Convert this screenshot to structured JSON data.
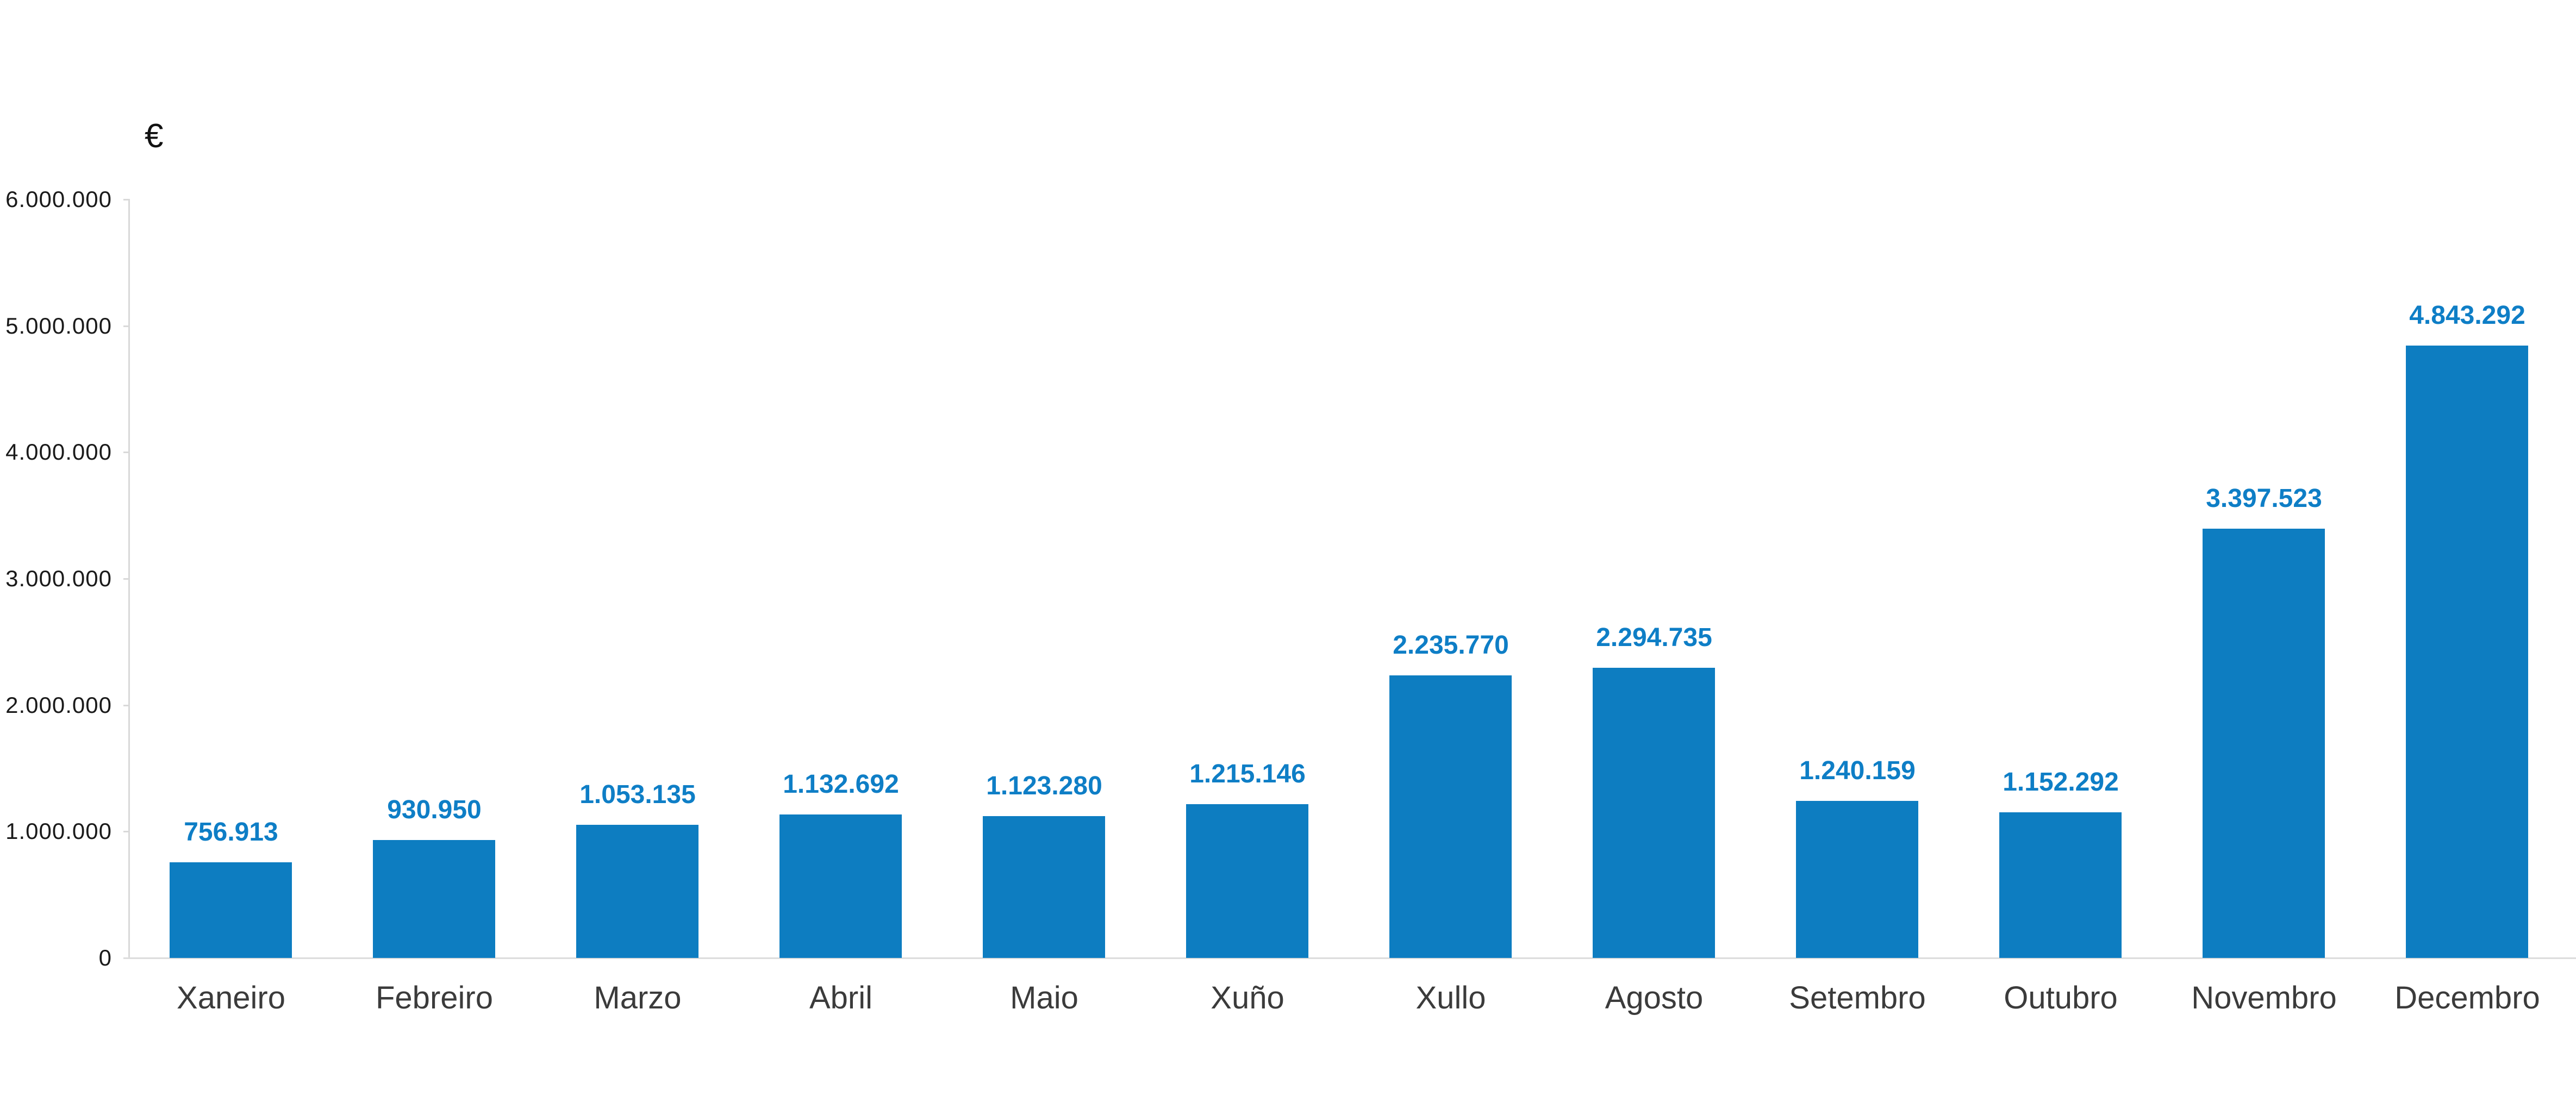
{
  "chart_data": {
    "type": "bar",
    "title": "",
    "unit_label": "€",
    "categories": [
      "Xaneiro",
      "Febreiro",
      "Marzo",
      "Abril",
      "Maio",
      "Xuño",
      "Xullo",
      "Agosto",
      "Setembro",
      "Outubro",
      "Novembro",
      "Decembro"
    ],
    "values": [
      756913,
      930950,
      1053135,
      1132692,
      1123280,
      1215146,
      2235770,
      2294735,
      1240159,
      1152292,
      3397523,
      4843292
    ],
    "value_labels": [
      "756.913",
      "930.950",
      "1.053.135",
      "1.132.692",
      "1.123.280",
      "1.215.146",
      "2.235.770",
      "2.294.735",
      "1.240.159",
      "1.152.292",
      "3.397.523",
      "4.843.292"
    ],
    "xlabel": "",
    "ylabel": "€",
    "ylim": [
      0,
      6000000
    ],
    "y_ticks": [
      {
        "value": 0,
        "label": "0"
      },
      {
        "value": 1000000,
        "label": "1.000.000"
      },
      {
        "value": 2000000,
        "label": "2.000.000"
      },
      {
        "value": 3000000,
        "label": "3.000.000"
      },
      {
        "value": 4000000,
        "label": "4.000.000"
      },
      {
        "value": 5000000,
        "label": "5.000.000"
      },
      {
        "value": 6000000,
        "label": "6.000.000"
      }
    ],
    "grid": false,
    "legend_position": "none",
    "colors": {
      "bar": "#0d7dc1",
      "value_label": "#0e7ec6",
      "month_label": "#3b3b3b",
      "axis_line": "#d9d9d9",
      "baseline": "#dcdcdc",
      "tick_label": "#1a1a1a"
    }
  }
}
